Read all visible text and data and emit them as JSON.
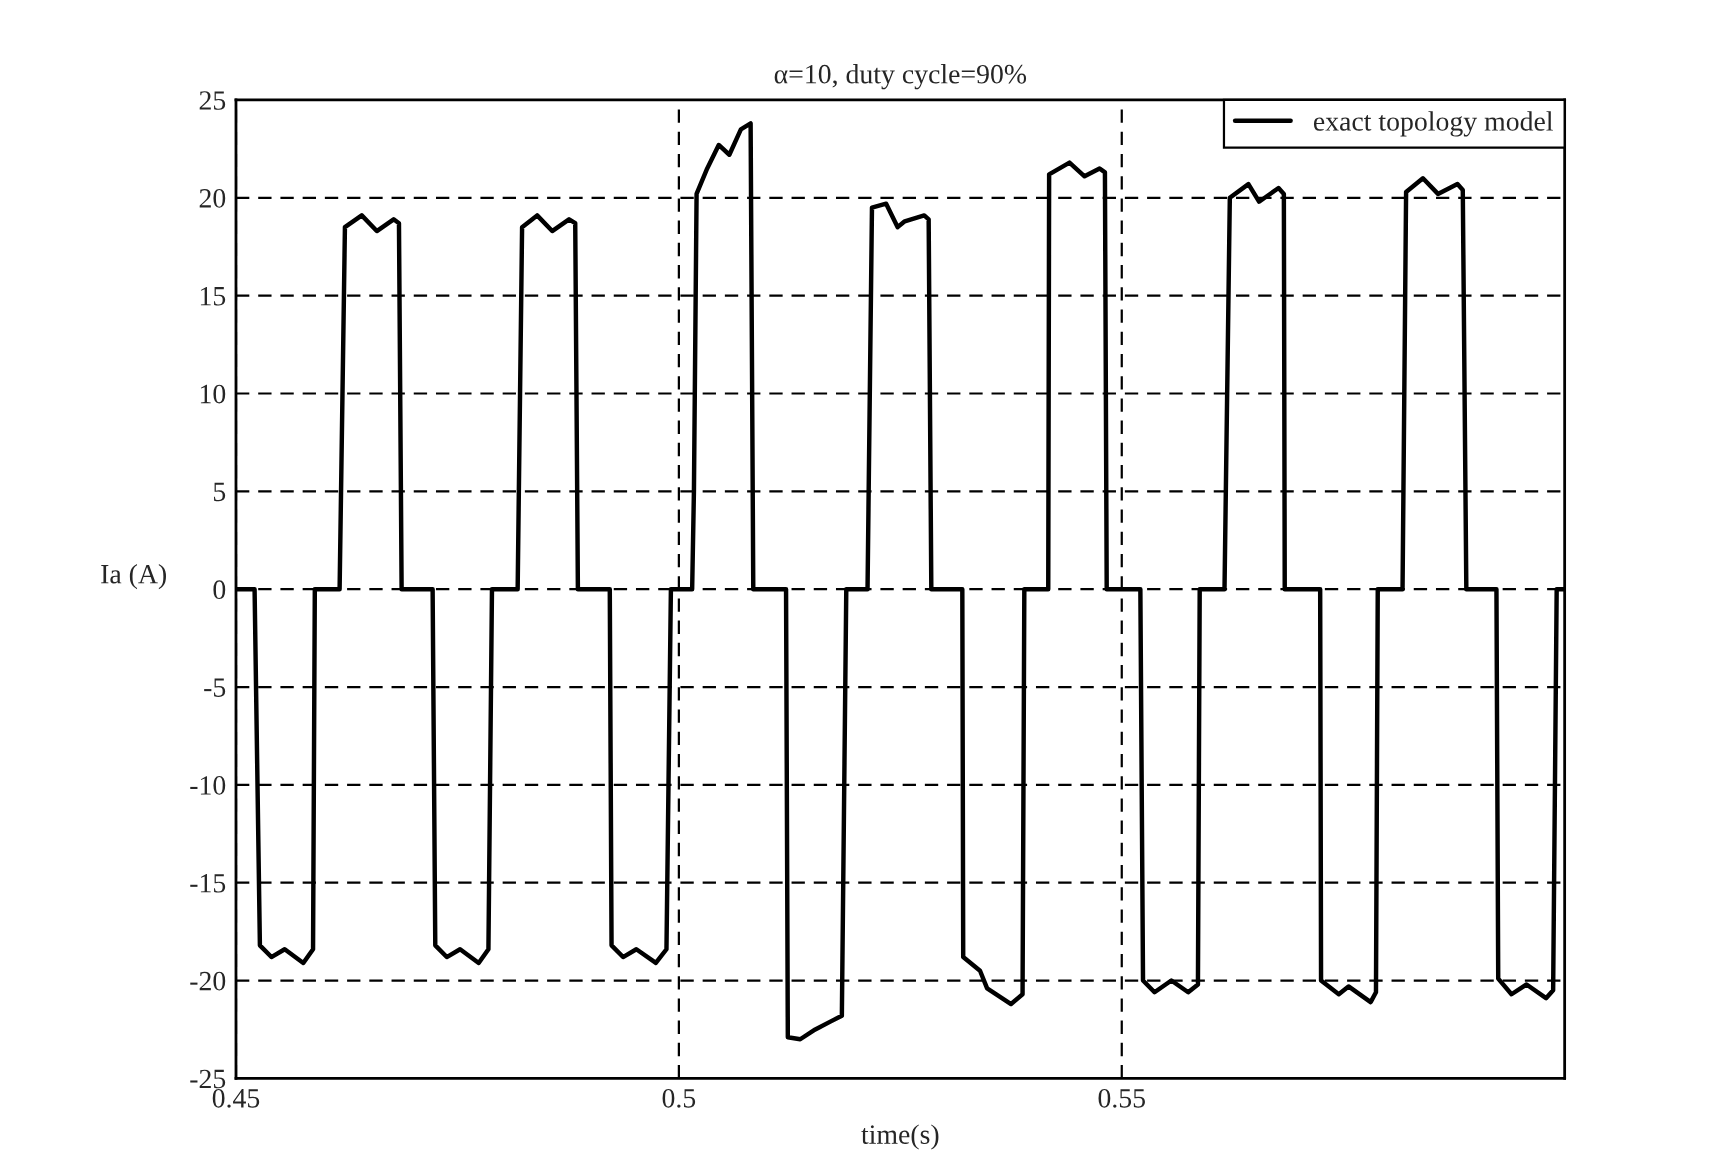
{
  "chart_data": {
    "type": "line",
    "title": "α=10, duty cycle=90%",
    "xlabel": "time(s)",
    "ylabel": "Ia (A)",
    "xlim": [
      0.45,
      0.6
    ],
    "xticks": [
      0.45,
      0.5,
      0.55
    ],
    "ylim": [
      -25,
      25
    ],
    "yticks": [
      -25,
      -20,
      -15,
      -10,
      -5,
      0,
      5,
      10,
      15,
      20,
      25
    ],
    "grid": true,
    "legend": "top right",
    "marker": "none",
    "line_style": "solid",
    "series": [
      {
        "name": "exact topology model",
        "color": "#000000",
        "x": [
          0.45,
          0.4521,
          0.4527,
          0.454,
          0.4555,
          0.4576,
          0.4587,
          0.4589,
          0.4617,
          0.4623,
          0.4642,
          0.4659,
          0.4678,
          0.4684,
          0.4687,
          0.4722,
          0.4725,
          0.4738,
          0.4753,
          0.4774,
          0.4785,
          0.4789,
          0.4818,
          0.4823,
          0.484,
          0.4857,
          0.4876,
          0.4883,
          0.4886,
          0.4922,
          0.4924,
          0.4937,
          0.4952,
          0.4974,
          0.4986,
          0.4991,
          0.5015,
          0.5017,
          0.502,
          0.5032,
          0.5045,
          0.5057,
          0.507,
          0.5081,
          0.5084,
          0.5121,
          0.5123,
          0.5137,
          0.5154,
          0.5171,
          0.5184,
          0.5189,
          0.5213,
          0.5218,
          0.5234,
          0.5247,
          0.5255,
          0.5277,
          0.5282,
          0.5285,
          0.532,
          0.5321,
          0.534,
          0.5348,
          0.5375,
          0.5388,
          0.539,
          0.5417,
          0.5418,
          0.5441,
          0.5458,
          0.5475,
          0.5481,
          0.5483,
          0.5521,
          0.5524,
          0.5537,
          0.5556,
          0.5575,
          0.5586,
          0.5588,
          0.5616,
          0.5622,
          0.5643,
          0.5655,
          0.5677,
          0.5683,
          0.5684,
          0.5724,
          0.5725,
          0.5745,
          0.5756,
          0.5781,
          0.5787,
          0.5789,
          0.5817,
          0.5821,
          0.584,
          0.5857,
          0.5879,
          0.5885,
          0.5889,
          0.5923,
          0.5925,
          0.594,
          0.5957,
          0.5979,
          0.5987,
          0.5991,
          0.6
        ],
        "values": [
          0,
          0,
          -18.2,
          -18.8,
          -18.4,
          -19.1,
          -18.4,
          0,
          0,
          18.5,
          19.1,
          18.3,
          18.9,
          18.7,
          0,
          0,
          -18.2,
          -18.8,
          -18.4,
          -19.1,
          -18.4,
          0,
          0,
          18.5,
          19.1,
          18.3,
          18.9,
          18.7,
          0,
          0,
          -18.2,
          -18.8,
          -18.4,
          -19.1,
          -18.4,
          0,
          0,
          5,
          20.2,
          21.5,
          22.7,
          22.2,
          23.5,
          23.8,
          0,
          0,
          -22.9,
          -23,
          -22.5,
          -22.1,
          -21.8,
          0,
          0,
          19.5,
          19.7,
          18.5,
          18.8,
          19.1,
          18.9,
          0,
          0,
          -18.8,
          -19.5,
          -20.4,
          -21.2,
          -20.7,
          0,
          0,
          21.2,
          21.8,
          21.1,
          21.5,
          21.3,
          0,
          0,
          -20,
          -20.6,
          -20,
          -20.6,
          -20.2,
          0,
          0,
          20,
          20.7,
          19.8,
          20.5,
          20.2,
          0,
          0,
          -20,
          -20.7,
          -20.3,
          -21.1,
          -20.6,
          0,
          0,
          20.3,
          21,
          20.2,
          20.7,
          20.4,
          0,
          0,
          -19.9,
          -20.7,
          -20.2,
          -20.9,
          -20.5,
          0,
          0
        ]
      }
    ]
  }
}
